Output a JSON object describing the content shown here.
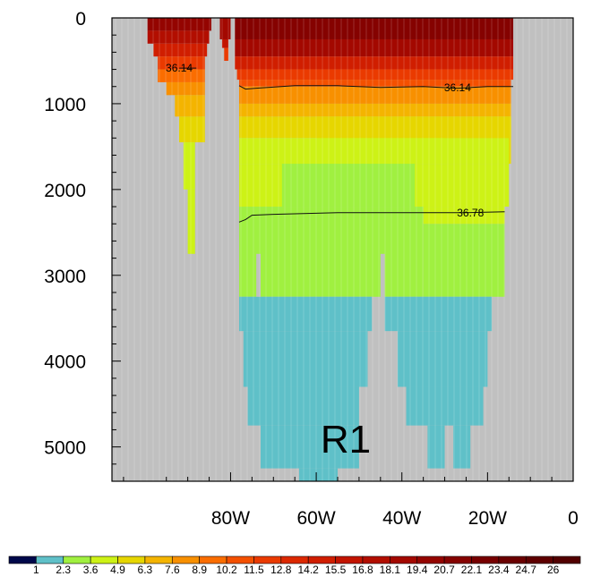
{
  "chart_data": {
    "type": "heatmap",
    "title": "",
    "annotation": "R1",
    "xlabel": "",
    "ylabel": "",
    "xlim": [
      -107.7,
      0
    ],
    "ylim": [
      5400,
      0
    ],
    "x_ticks": [
      {
        "value": -80,
        "label": "80W"
      },
      {
        "value": -60,
        "label": "60W"
      },
      {
        "value": -40,
        "label": "40W"
      },
      {
        "value": -20,
        "label": "20W"
      },
      {
        "value": 0,
        "label": "0"
      }
    ],
    "y_ticks": [
      {
        "value": 0,
        "label": "0"
      },
      {
        "value": 1000,
        "label": "1000"
      },
      {
        "value": 2000,
        "label": "2000"
      },
      {
        "value": 3000,
        "label": "3000"
      },
      {
        "value": 4000,
        "label": "4000"
      },
      {
        "value": 5000,
        "label": "5000"
      }
    ],
    "missing_color": "#c0c0c0",
    "colorbar": {
      "labels": [
        "1",
        "2.3",
        "3.6",
        "4.9",
        "6.3",
        "7.6",
        "8.9",
        "10.2",
        "11.5",
        "12.8",
        "14.2",
        "15.5",
        "16.8",
        "18.1",
        "19.4",
        "20.7",
        "22.1",
        "23.4",
        "24.7",
        "26"
      ],
      "colors": [
        "#00084a",
        "#5fc0c8",
        "#a0f040",
        "#cdf216",
        "#e6d600",
        "#f4b400",
        "#f89000",
        "#fa6d00",
        "#f45000",
        "#ea3a00",
        "#dc2800",
        "#d01e00",
        "#c21400",
        "#b20e00",
        "#a30800",
        "#940400",
        "#850200",
        "#770000",
        "#6a0000",
        "#5e0000",
        "#520000"
      ]
    },
    "cells": [
      [
        -99.4,
        -84.5,
        0,
        150,
        15
      ],
      [
        -99.4,
        -85,
        150,
        300,
        13
      ],
      [
        -98,
        -85.5,
        300,
        450,
        11
      ],
      [
        -97,
        -86,
        450,
        600,
        9
      ],
      [
        -97,
        -86,
        600,
        750,
        7
      ],
      [
        -95,
        -86,
        750,
        900,
        6
      ],
      [
        -93,
        -86,
        900,
        1150,
        5
      ],
      [
        -92,
        -86,
        1150,
        1450,
        4
      ],
      [
        -91,
        -88.3,
        1450,
        2000,
        3
      ],
      [
        -90,
        -88.3,
        2000,
        2750,
        3
      ],
      [
        -82.5,
        -80,
        0,
        250,
        14
      ],
      [
        -82,
        -80.5,
        250,
        350,
        12
      ],
      [
        -81.5,
        -80.5,
        350,
        500,
        9
      ],
      [
        -79,
        -14,
        0,
        250,
        16
      ],
      [
        -79,
        -14,
        250,
        450,
        14
      ],
      [
        -79,
        -14,
        450,
        600,
        11
      ],
      [
        -78.5,
        -14,
        600,
        720,
        9
      ],
      [
        -78,
        -14.5,
        720,
        800,
        8
      ],
      [
        -78,
        -14.5,
        800,
        1000,
        6
      ],
      [
        -78,
        -14.5,
        1000,
        1150,
        5
      ],
      [
        -78,
        -14.5,
        1150,
        1400,
        4
      ],
      [
        -60,
        -14.5,
        1150,
        1700,
        4
      ],
      [
        -30,
        -15,
        1400,
        1700,
        5
      ],
      [
        -78,
        -15,
        1400,
        1700,
        3
      ],
      [
        -78,
        -15,
        1700,
        2200,
        3
      ],
      [
        -68,
        -37,
        1700,
        2200,
        2
      ],
      [
        -78,
        -35,
        2200,
        3250,
        2
      ],
      [
        -35,
        -16,
        2400,
        3250,
        2
      ],
      [
        -35,
        -16,
        2200,
        2400,
        3
      ],
      [
        -78,
        -47,
        3250,
        3650,
        1
      ],
      [
        -44,
        -19,
        3250,
        3650,
        1
      ],
      [
        -77,
        -48,
        3650,
        4300,
        1
      ],
      [
        -41,
        -20,
        3650,
        4300,
        1
      ],
      [
        -76,
        -50,
        4300,
        4750,
        1
      ],
      [
        -39,
        -21,
        4300,
        4750,
        1
      ],
      [
        -73,
        -50,
        4750,
        5250,
        1
      ],
      [
        -34,
        -30,
        4750,
        5250,
        1
      ],
      [
        -28,
        -24,
        4750,
        5250,
        1
      ],
      [
        -64,
        -55,
        5250,
        5400,
        1
      ]
    ],
    "gaps": [
      [
        -74,
        -73,
        2750,
        3250
      ],
      [
        -45,
        -44,
        2750,
        3700
      ]
    ],
    "contours": [
      {
        "label": "36.14",
        "points": [
          [
            -92,
            585
          ],
          [
            -88,
            585
          ]
        ]
      },
      {
        "label": "36.14",
        "points": [
          [
            -78,
            790
          ],
          [
            -76.5,
            830
          ],
          [
            -74,
            820
          ],
          [
            -65,
            790
          ],
          [
            -55,
            790
          ],
          [
            -45,
            810
          ],
          [
            -35,
            800
          ],
          [
            -27,
            820
          ],
          [
            -20,
            800
          ],
          [
            -14,
            800
          ]
        ]
      },
      {
        "label": "36.78",
        "points": [
          [
            -78,
            2380
          ],
          [
            -76.5,
            2350
          ],
          [
            -75,
            2300
          ],
          [
            -70,
            2290
          ],
          [
            -55,
            2270
          ],
          [
            -40,
            2270
          ],
          [
            -25,
            2270
          ],
          [
            -16,
            2260
          ]
        ]
      }
    ],
    "contour_label_positions": [
      [
        -92,
        585
      ],
      [
        -27,
        815
      ],
      [
        -24,
        2270
      ]
    ]
  }
}
